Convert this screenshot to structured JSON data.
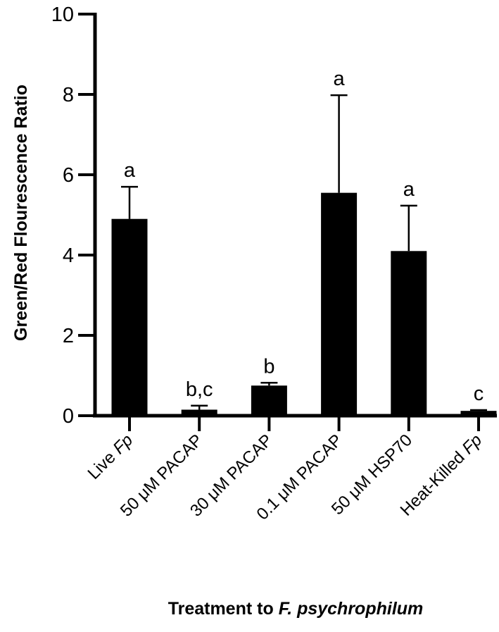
{
  "chart_data": {
    "type": "bar",
    "title": "",
    "ylabel": "Green/Red Flourescence Ratio",
    "xlabel": {
      "text": "Treatment to ",
      "italic": "F. psychrophilum"
    },
    "ylim": [
      0,
      10
    ],
    "yticks": [
      "0",
      "2",
      "4",
      "6",
      "8",
      "10"
    ],
    "grid": false,
    "categories": [
      {
        "text": "Live ",
        "italic": "Fp"
      },
      {
        "text": "50 μM PACAP",
        "italic": ""
      },
      {
        "text": "30 μM PACAP",
        "italic": ""
      },
      {
        "text": "0.1 μM PACAP",
        "italic": ""
      },
      {
        "text": "50 μM HSP70",
        "italic": ""
      },
      {
        "text": "Heat-Killed ",
        "italic": "Fp"
      }
    ],
    "values": [
      4.9,
      0.15,
      0.75,
      5.55,
      4.1,
      0.12
    ],
    "error_upper": [
      5.7,
      0.25,
      0.82,
      7.98,
      5.23,
      0.14
    ],
    "significance_labels": [
      "a",
      "b,c",
      "b",
      "a",
      "a",
      "c"
    ],
    "bar_color": "#000000"
  }
}
